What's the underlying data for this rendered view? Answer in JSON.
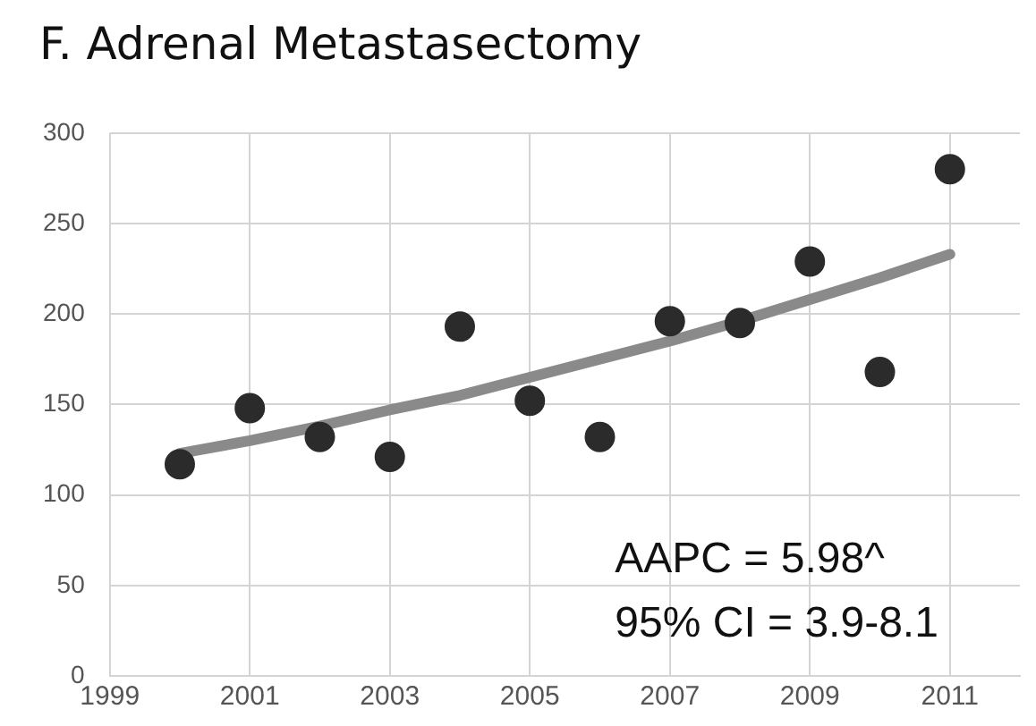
{
  "chart_data": {
    "type": "scatter",
    "title": "F. Adrenal Metastasectomy",
    "series": [
      {
        "type": "scatter",
        "color": "#2b2b2b",
        "marker": "circle",
        "x": [
          2000,
          2001,
          2002,
          2003,
          2004,
          2005,
          2006,
          2007,
          2008,
          2009,
          2010,
          2011
        ],
        "values": [
          117,
          148,
          132,
          121,
          193,
          152,
          132,
          196,
          195,
          229,
          168,
          280
        ]
      },
      {
        "type": "line",
        "color": "#8a8a8a",
        "marker": "none",
        "x": [
          2000,
          2001,
          2002,
          2003,
          2004,
          2005,
          2006,
          2007,
          2008,
          2009,
          2010,
          2011
        ],
        "values": [
          123,
          130,
          138,
          147,
          155,
          165,
          175,
          185,
          196,
          208,
          220,
          233
        ]
      }
    ],
    "xlim": [
      1999,
      2012
    ],
    "xticks": [
      1999,
      2001,
      2003,
      2005,
      2007,
      2009,
      2011
    ],
    "ylim": [
      0,
      300
    ],
    "yticks": [
      0,
      50,
      100,
      150,
      200,
      250,
      300
    ],
    "grid": true,
    "legend": false,
    "annotations": [
      "AAPC = 5.98^",
      "95% CI = 3.9-8.1"
    ]
  }
}
